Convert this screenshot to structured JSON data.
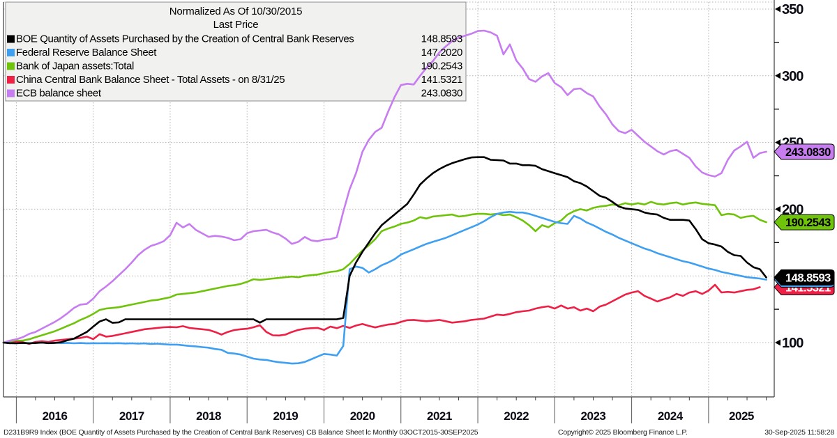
{
  "chart_data": {
    "type": "line",
    "title": "Normalized As Of 10/30/2015",
    "subtitle": "Last Price",
    "x_range_label": "03OCT2015-30SEP2025",
    "x_year_labels": [
      "2016",
      "2017",
      "2018",
      "2019",
      "2020",
      "2021",
      "2022",
      "2023",
      "2024",
      "2025"
    ],
    "y_ticks": [
      100,
      150,
      200,
      250,
      300,
      350
    ],
    "y_minor_ticks": [
      125,
      175,
      225,
      275,
      325
    ],
    "ylim": [
      59,
      355
    ],
    "grid": "dotted",
    "legend_position": "top-left",
    "x_start": "Oct 2015",
    "x_frequency": "monthly",
    "series": [
      {
        "name": "BOE Quantity of Assets Purchased by the Creation of Central Bank Reserves",
        "last_price_label": "148.8593",
        "last_price": 148.8593,
        "color": "#000000",
        "tag_text_color": "#ffffff",
        "values": [
          100,
          99.6,
          99.5,
          99.8,
          99.5,
          99.7,
          100,
          99.6,
          99.8,
          100.3,
          101.8,
          103,
          105.5,
          108,
          112,
          115.8,
          117.5,
          114.8,
          115.2,
          117.5,
          117.5,
          117.5,
          117.5,
          117.5,
          117.5,
          117.5,
          117.5,
          117.5,
          117.5,
          117.5,
          117.5,
          117.5,
          117.5,
          117.5,
          117.5,
          117.5,
          117.5,
          117.5,
          117.5,
          117.5,
          115,
          117.5,
          117.5,
          117.5,
          117.5,
          117.5,
          117.5,
          117.5,
          117.5,
          117.5,
          117.5,
          117.5,
          117.5,
          118.5,
          150,
          160,
          168,
          175,
          182,
          188,
          192,
          196,
          200,
          204,
          211,
          218.5,
          223,
          227,
          230,
          232.5,
          234.5,
          236,
          237.5,
          238.8,
          239,
          239,
          237,
          236.8,
          236.5,
          234.2,
          234.2,
          233,
          233,
          232.5,
          230,
          228.5,
          227,
          225.5,
          224,
          221,
          219.5,
          217,
          213.5,
          210,
          208.5,
          205.5,
          202,
          200.5,
          200,
          199.5,
          197.5,
          196.5,
          196,
          193.5,
          192,
          192,
          192,
          191.5,
          185,
          177.5,
          174.5,
          173.5,
          172,
          168,
          165.5,
          165,
          160,
          156.5,
          155,
          148.86
        ]
      },
      {
        "name": "Federal Reserve Balance Sheet",
        "last_price_label": "147.2020",
        "last_price": 147.202,
        "color": "#3f9ff0",
        "tag_text_color": "#ffffff",
        "values": [
          100,
          99.7,
          99.5,
          99.8,
          99.6,
          99.8,
          100,
          99.7,
          99.9,
          99.6,
          99.8,
          99.5,
          99.7,
          99.4,
          99.6,
          99.5,
          99.6,
          99.4,
          99.6,
          99.3,
          99.5,
          99.2,
          99.4,
          99,
          99.2,
          98.8,
          98.5,
          98.5,
          98,
          97.5,
          97.2,
          96.6,
          96.2,
          95.2,
          94.6,
          92.3,
          91.8,
          91,
          89.5,
          88,
          87.3,
          87,
          86,
          85.3,
          84.8,
          84.3,
          84.5,
          85.5,
          87.5,
          89.5,
          91.5,
          91,
          90.3,
          97.5,
          155,
          157,
          156,
          152.5,
          155,
          158,
          160,
          162.5,
          166,
          168,
          170,
          172,
          174,
          175.5,
          177,
          178.5,
          180.5,
          182.5,
          184.5,
          186.5,
          188.5,
          191,
          194,
          196.5,
          197.5,
          198,
          197.5,
          197.5,
          196.5,
          195,
          193.5,
          192,
          190.5,
          189.5,
          189,
          195,
          193,
          190,
          188,
          185.5,
          183,
          181,
          178.5,
          176.5,
          174.5,
          172.5,
          170.5,
          169,
          167,
          165.5,
          164,
          162.5,
          161,
          160,
          158.5,
          157,
          155.5,
          154.5,
          153,
          152,
          151,
          150,
          149,
          148.5,
          148,
          147.2
        ]
      },
      {
        "name": "Bank of Japan assets:Total",
        "last_price_label": "190.2543",
        "last_price": 190.2543,
        "color": "#6fc30a",
        "tag_text_color": "#000000",
        "values": [
          100,
          100.8,
          101.3,
          101.5,
          102.5,
          104,
          105.5,
          107,
          108.5,
          110.5,
          112.5,
          114.5,
          117,
          119,
          121.5,
          124.5,
          125.5,
          126,
          126.5,
          127.5,
          128.5,
          129.5,
          130.5,
          131.5,
          132,
          133,
          134,
          136,
          136.5,
          137,
          137.5,
          138.5,
          139.5,
          140.5,
          141.5,
          142.5,
          143,
          144,
          145.5,
          147.5,
          147,
          147.5,
          148,
          148.5,
          149,
          149.5,
          149,
          150,
          150.5,
          151,
          152,
          153,
          153.5,
          155,
          159,
          164,
          169,
          173,
          177.5,
          183.5,
          185.5,
          187,
          189,
          190,
          191.5,
          194,
          193,
          194.5,
          195,
          195.5,
          196,
          194.5,
          195,
          196,
          196.5,
          196.5,
          196,
          196.5,
          195.5,
          196,
          194,
          191.5,
          188,
          183.5,
          188,
          186.5,
          189.5,
          191.5,
          196,
          198.5,
          200,
          199,
          201,
          202,
          202.5,
          203.5,
          203,
          204.5,
          203.5,
          204.5,
          203.5,
          205.5,
          204,
          203.5,
          204.5,
          205,
          203.5,
          204.5,
          205,
          204,
          203.5,
          203,
          195.5,
          196.5,
          196,
          193.5,
          194.5,
          195,
          192,
          190.25
        ]
      },
      {
        "name": "China Central Bank Balance Sheet - Total Assets -  on 8/31/25",
        "last_price_label": "141.5321",
        "last_price": 141.5321,
        "color": "#ee2045",
        "tag_text_color": "#ffffff",
        "values": [
          100,
          99.5,
          100.5,
          100.3,
          99,
          100.5,
          101,
          100.5,
          101.5,
          102,
          102.5,
          103,
          103.5,
          104.5,
          102.6,
          106.3,
          104.5,
          105,
          106,
          107,
          108,
          109,
          110,
          110.5,
          111,
          111.5,
          111.7,
          111.5,
          112.3,
          111,
          110.5,
          110,
          109.5,
          108,
          106,
          108,
          109.4,
          110,
          110.4,
          111.5,
          113,
          108,
          105.5,
          105.3,
          106,
          108,
          109.5,
          110.4,
          110.8,
          111,
          109.5,
          112,
          110.8,
          112.5,
          111,
          112.8,
          114,
          112.5,
          111.4,
          112.5,
          113.5,
          114,
          115.5,
          116.8,
          117,
          116.5,
          116,
          116.5,
          117,
          116,
          115,
          115.5,
          116,
          117,
          117.5,
          118,
          119.5,
          121,
          120.5,
          121.5,
          122.8,
          123.5,
          124,
          125.5,
          126.5,
          127.2,
          125.5,
          127.8,
          125.5,
          126.5,
          124,
          125.5,
          123.5,
          127,
          128.5,
          131,
          133.5,
          136,
          137.5,
          138.5,
          135,
          133,
          130.8,
          132.5,
          134,
          136.5,
          135,
          137.5,
          138.5,
          136.5,
          139,
          143.3,
          137.6,
          138,
          137.5,
          138.5,
          139.5,
          140,
          141.53
        ]
      },
      {
        "name": "ECB balance sheet",
        "last_price_label": "243.0830",
        "last_price": 243.083,
        "color": "#c77df0",
        "tag_text_color": "#000000",
        "values": [
          100,
          101.5,
          102.5,
          104,
          106.5,
          108,
          110.5,
          113,
          115.5,
          118.5,
          122,
          126,
          128.5,
          129,
          133,
          138.5,
          142,
          146,
          150.5,
          155,
          160,
          165.5,
          169.5,
          172.5,
          174,
          176,
          180.5,
          189.8,
          186.3,
          188.9,
          184.5,
          181.9,
          179.3,
          180,
          179.5,
          178.5,
          176.7,
          177.5,
          182,
          183.5,
          184,
          184.5,
          182.5,
          181,
          178,
          174,
          175.5,
          179.2,
          176.6,
          176,
          177.2,
          177.5,
          179,
          198,
          215,
          227,
          243,
          252,
          258,
          261,
          273,
          284,
          293,
          294,
          293.5,
          300,
          306,
          311,
          317.5,
          322,
          326,
          328.5,
          330,
          331.5,
          333.5,
          333.8,
          332.5,
          330,
          316,
          323.5,
          311.5,
          305.5,
          297.5,
          295.5,
          299.5,
          302,
          294.5,
          291.5,
          285.5,
          290,
          290.5,
          287,
          284.5,
          277,
          271,
          263.5,
          258.5,
          257,
          259.5,
          255,
          250.5,
          247,
          243.5,
          241,
          243.5,
          244.5,
          241.5,
          238.5,
          232,
          227.5,
          225.5,
          224.5,
          227,
          237,
          244,
          247,
          250.5,
          238.5,
          242,
          243.08
        ]
      }
    ]
  },
  "footer": {
    "left": "D231B9R9 Index (BOE Quantity of Assets Purchased by the Creation of Central Bank Reserves) CB Balance Sheet lc   Monthly 03OCT2015-30SEP2025",
    "copyright": "Copyright© 2025 Bloomberg Finance L.P.",
    "datetime": "30-Sep-2025 11:58:28"
  },
  "colors": {
    "background": "#ffffff",
    "grid": "#b3b3b3",
    "axis": "#3c3c3c",
    "axis_label": "#0b0b16",
    "legend_bg": "#f1f1f0",
    "legend_border": "#8c8c8c"
  }
}
